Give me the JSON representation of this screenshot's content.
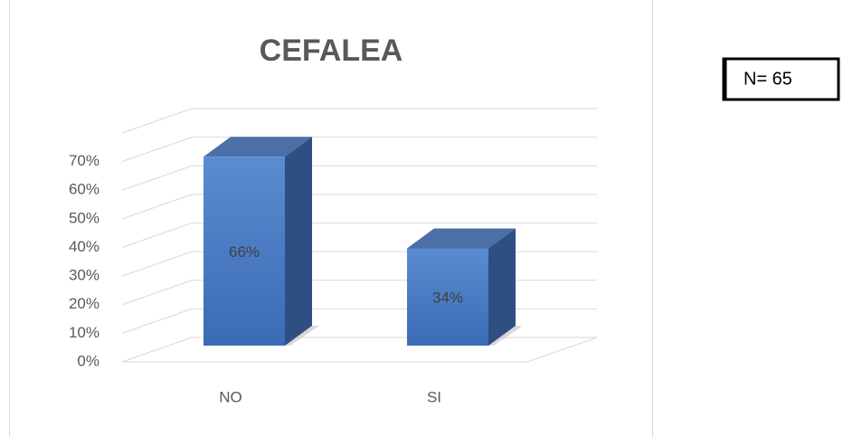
{
  "chart_data": {
    "type": "bar3d",
    "title": "CEFALEA",
    "categories": [
      "NO",
      "SI"
    ],
    "values": [
      66,
      34
    ],
    "value_labels": [
      "66%",
      "34%"
    ],
    "color": "#4a7cc4",
    "ylim": [
      0,
      80
    ],
    "yticks": [
      {
        "value": 0,
        "label": "0%"
      },
      {
        "value": 10,
        "label": "10%"
      },
      {
        "value": 20,
        "label": "20%"
      },
      {
        "value": 30,
        "label": "30%"
      },
      {
        "value": 40,
        "label": "40%"
      },
      {
        "value": 50,
        "label": "50%"
      },
      {
        "value": 60,
        "label": "60%"
      },
      {
        "value": 70,
        "label": "70%"
      }
    ],
    "grid": true,
    "annotation": "N= 65"
  }
}
